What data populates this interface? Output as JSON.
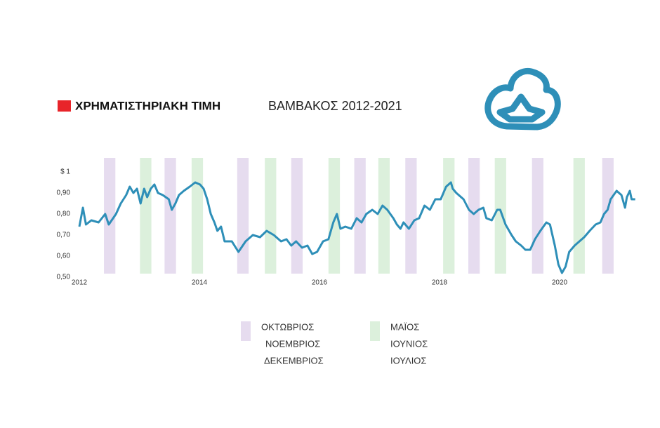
{
  "chart_data": {
    "type": "line",
    "title": [
      "ΧΡΗΜΑΤΙΣΤΗΡΙΑΚΗ ΤΙΜΗ",
      "ΒΑΜΒΑΚΟΣ 2012-2021"
    ],
    "title_marker_color": "#e8242a",
    "xlim": [
      2012,
      2021.3
    ],
    "xticks": [
      2012,
      2014,
      2016,
      2018,
      2020
    ],
    "ylim": [
      0.5,
      1.0
    ],
    "yticks": [
      {
        "value": 0.5,
        "label": "0,50"
      },
      {
        "value": 0.6,
        "label": "0,60"
      },
      {
        "value": 0.7,
        "label": "0,70"
      },
      {
        "value": 0.8,
        "label": "0,80"
      },
      {
        "value": 0.9,
        "label": "0,90"
      },
      {
        "value": 1.0,
        "label": "$ 1"
      }
    ],
    "grid": false,
    "series": [
      {
        "color": "#2e8fb8",
        "x": [
          2012.0,
          2012.06,
          2012.11,
          2012.2,
          2012.32,
          2012.43,
          2012.49,
          2012.61,
          2012.69,
          2012.78,
          2012.84,
          2012.9,
          2012.96,
          2013.02,
          2013.08,
          2013.13,
          2013.19,
          2013.25,
          2013.31,
          2013.39,
          2013.49,
          2013.54,
          2013.6,
          2013.66,
          2013.74,
          2013.84,
          2013.93,
          2014.01,
          2014.07,
          2014.13,
          2014.19,
          2014.25,
          2014.3,
          2014.36,
          2014.42,
          2014.54,
          2014.65,
          2014.77,
          2014.89,
          2015.01,
          2015.12,
          2015.24,
          2015.36,
          2015.45,
          2015.53,
          2015.61,
          2015.71,
          2015.8,
          2015.88,
          2015.96,
          2016.06,
          2016.15,
          2016.23,
          2016.29,
          2016.35,
          2016.43,
          2016.53,
          2016.62,
          2016.7,
          2016.78,
          2016.88,
          2016.97,
          2017.05,
          2017.13,
          2017.23,
          2017.29,
          2017.35,
          2017.4,
          2017.49,
          2017.58,
          2017.66,
          2017.75,
          2017.84,
          2017.93,
          2018.02,
          2018.11,
          2018.19,
          2018.22,
          2018.28,
          2018.4,
          2018.49,
          2018.57,
          2018.65,
          2018.73,
          2018.78,
          2018.87,
          2018.96,
          2019.01,
          2019.1,
          2019.2,
          2019.27,
          2019.36,
          2019.43,
          2019.51,
          2019.59,
          2019.68,
          2019.78,
          2019.84,
          2019.92,
          2019.98,
          2020.04,
          2020.1,
          2020.16,
          2020.25,
          2020.33,
          2020.41,
          2020.5,
          2020.6,
          2020.68,
          2020.74,
          2020.8,
          2020.85,
          2020.95,
          2021.03,
          2021.09,
          2021.12,
          2021.17,
          2021.2,
          2021.26
        ],
        "values": [
          0.74,
          0.83,
          0.75,
          0.77,
          0.76,
          0.8,
          0.75,
          0.8,
          0.85,
          0.89,
          0.93,
          0.9,
          0.92,
          0.85,
          0.92,
          0.88,
          0.92,
          0.94,
          0.9,
          0.89,
          0.87,
          0.82,
          0.85,
          0.89,
          0.91,
          0.93,
          0.95,
          0.94,
          0.92,
          0.87,
          0.8,
          0.76,
          0.72,
          0.74,
          0.67,
          0.67,
          0.62,
          0.67,
          0.7,
          0.69,
          0.72,
          0.7,
          0.67,
          0.68,
          0.65,
          0.67,
          0.64,
          0.65,
          0.61,
          0.62,
          0.67,
          0.68,
          0.76,
          0.8,
          0.73,
          0.74,
          0.73,
          0.78,
          0.76,
          0.8,
          0.82,
          0.8,
          0.84,
          0.82,
          0.78,
          0.75,
          0.73,
          0.76,
          0.73,
          0.77,
          0.78,
          0.84,
          0.82,
          0.87,
          0.87,
          0.93,
          0.95,
          0.92,
          0.9,
          0.87,
          0.82,
          0.8,
          0.82,
          0.83,
          0.78,
          0.77,
          0.82,
          0.82,
          0.75,
          0.7,
          0.67,
          0.65,
          0.63,
          0.63,
          0.68,
          0.72,
          0.76,
          0.75,
          0.65,
          0.56,
          0.52,
          0.55,
          0.62,
          0.65,
          0.67,
          0.69,
          0.72,
          0.75,
          0.76,
          0.8,
          0.82,
          0.87,
          0.91,
          0.89,
          0.83,
          0.88,
          0.91,
          0.87,
          0.87
        ]
      }
    ],
    "bands": [
      {
        "name": [
          "ΟΚΤΩΒΡΙΟΣ",
          "ΝΟΕΜΒΡΙΟΣ",
          "ΔΕΚΕΜΒΡΙΟΣ"
        ],
        "color": "#e6dcef",
        "ranges": [
          [
            2012.41,
            2012.6
          ],
          [
            2013.42,
            2013.61
          ],
          [
            2014.63,
            2014.82
          ],
          [
            2015.53,
            2015.72
          ],
          [
            2016.58,
            2016.77
          ],
          [
            2017.43,
            2017.62
          ],
          [
            2018.48,
            2018.67
          ],
          [
            2019.54,
            2019.73
          ],
          [
            2020.71,
            2020.9
          ]
        ]
      },
      {
        "name": [
          "ΜΑΪΟΣ",
          "ΙΟΥΝΙΟΣ",
          "ΙΟΥΛΙΟΣ"
        ],
        "color": "#dcf0dc",
        "ranges": [
          [
            2013.01,
            2013.2
          ],
          [
            2013.87,
            2014.06
          ],
          [
            2015.09,
            2015.28
          ],
          [
            2016.15,
            2016.34
          ],
          [
            2016.98,
            2017.17
          ],
          [
            2018.06,
            2018.25
          ],
          [
            2018.92,
            2019.11
          ],
          [
            2020.23,
            2020.42
          ]
        ]
      }
    ]
  }
}
